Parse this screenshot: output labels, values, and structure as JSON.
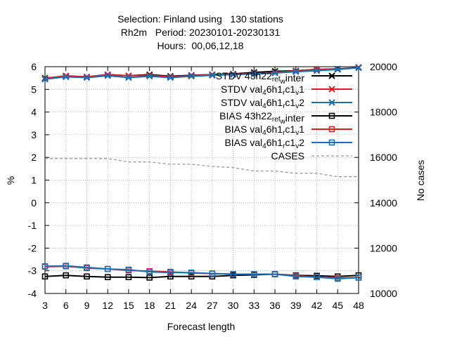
{
  "chart_data": {
    "type": "line",
    "title_lines": [
      "Selection: Finland using   130 stations",
      "Rh2m   Period: 20230101-20230131",
      "Hours:  00,06,12,18"
    ],
    "xlabel": "Forecast length",
    "ylabel": "%",
    "y2label": "No cases",
    "x": [
      3,
      6,
      9,
      12,
      15,
      18,
      21,
      24,
      27,
      30,
      33,
      36,
      39,
      42,
      45,
      48
    ],
    "xlim": [
      3,
      48
    ],
    "ylim": [
      -4,
      6
    ],
    "y2lim": [
      10000,
      20000
    ],
    "yticks": [
      -4,
      -3,
      -2,
      -1,
      0,
      1,
      2,
      3,
      4,
      5,
      6
    ],
    "y2ticks": [
      10000,
      12000,
      14000,
      16000,
      18000,
      20000
    ],
    "grid": true,
    "legend_position": "top-right",
    "series": [
      {
        "name": "STDV 43h22 ref w inter",
        "label_parts": [
          [
            "STDV 43h22",
            ""
          ],
          [
            "ref",
            "sub"
          ],
          [
            "w",
            "sub"
          ],
          [
            "inter",
            ""
          ]
        ],
        "color": "#000000",
        "marker": "x",
        "axis": "y1",
        "values": [
          5.5,
          5.58,
          5.55,
          5.65,
          5.6,
          5.65,
          5.58,
          5.62,
          5.65,
          5.68,
          5.75,
          5.8,
          5.82,
          5.88,
          5.9,
          5.97
        ]
      },
      {
        "name": "STDV val 4 6h1 r c1 v 1",
        "label_parts": [
          [
            "STDV val",
            ""
          ],
          [
            "4",
            "sub"
          ],
          [
            "6h1",
            ""
          ],
          [
            "r",
            "sub"
          ],
          [
            "c1",
            ""
          ],
          [
            "v",
            "sub"
          ],
          [
            "1",
            ""
          ]
        ],
        "color": "#d62020",
        "marker": "x",
        "axis": "y1",
        "values": [
          5.48,
          5.6,
          5.55,
          5.65,
          5.6,
          5.62,
          5.55,
          5.6,
          5.65,
          5.67,
          5.7,
          5.75,
          5.82,
          5.88,
          5.88,
          5.97
        ]
      },
      {
        "name": "STDV val 4 6h1 r c1 v 2",
        "label_parts": [
          [
            "STDV val",
            ""
          ],
          [
            "4",
            "sub"
          ],
          [
            "6h1",
            ""
          ],
          [
            "r",
            "sub"
          ],
          [
            "c1",
            ""
          ],
          [
            "v",
            "sub"
          ],
          [
            "2",
            ""
          ]
        ],
        "color": "#1a6fb0",
        "marker": "x",
        "axis": "y1",
        "values": [
          5.45,
          5.55,
          5.52,
          5.6,
          5.52,
          5.58,
          5.52,
          5.58,
          5.62,
          5.65,
          5.68,
          5.72,
          5.78,
          5.82,
          5.88,
          5.95
        ]
      },
      {
        "name": "BIAS 43h22 ref w inter",
        "label_parts": [
          [
            "BIAS 43h22",
            ""
          ],
          [
            "ref",
            "sub"
          ],
          [
            "w",
            "sub"
          ],
          [
            "inter",
            ""
          ]
        ],
        "color": "#000000",
        "marker": "square",
        "axis": "y1",
        "values": [
          -3.25,
          -3.2,
          -3.25,
          -3.28,
          -3.28,
          -3.3,
          -3.25,
          -3.25,
          -3.25,
          -3.2,
          -3.18,
          -3.15,
          -3.2,
          -3.22,
          -3.25,
          -3.2
        ]
      },
      {
        "name": "BIAS val 4 6h1 r c1 v 1",
        "label_parts": [
          [
            "BIAS val",
            ""
          ],
          [
            "4",
            "sub"
          ],
          [
            "6h1",
            ""
          ],
          [
            "r",
            "sub"
          ],
          [
            "c1",
            ""
          ],
          [
            "v",
            "sub"
          ],
          [
            "1",
            ""
          ]
        ],
        "color": "#d62020",
        "marker": "square",
        "axis": "y1",
        "values": [
          -2.82,
          -2.8,
          -2.88,
          -2.92,
          -2.98,
          -3.02,
          -3.05,
          -3.1,
          -3.12,
          -3.15,
          -3.15,
          -3.15,
          -3.22,
          -3.28,
          -3.32,
          -3.3
        ]
      },
      {
        "name": "BIAS val 4 6h1 r c1 v 2",
        "label_parts": [
          [
            "BIAS val",
            ""
          ],
          [
            "4",
            "sub"
          ],
          [
            "6h1",
            ""
          ],
          [
            "r",
            "sub"
          ],
          [
            "c1",
            ""
          ],
          [
            "v",
            "sub"
          ],
          [
            "2",
            ""
          ]
        ],
        "color": "#1a6fb0",
        "marker": "square",
        "axis": "y1",
        "values": [
          -2.8,
          -2.78,
          -2.85,
          -2.92,
          -2.95,
          -3.05,
          -3.08,
          -3.08,
          -3.12,
          -3.15,
          -3.15,
          -3.15,
          -3.25,
          -3.28,
          -3.35,
          -3.3
        ]
      },
      {
        "name": "CASES",
        "label_parts": [
          [
            "CASES",
            ""
          ]
        ],
        "color": "#999999",
        "marker": "none",
        "dashed": true,
        "axis": "y2",
        "values": [
          15950,
          15950,
          15950,
          15950,
          15800,
          15800,
          15700,
          15700,
          15600,
          15550,
          15400,
          15400,
          15300,
          15300,
          15150,
          15150
        ]
      }
    ]
  }
}
